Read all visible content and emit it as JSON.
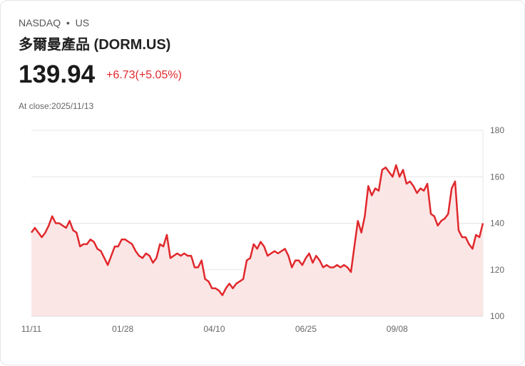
{
  "header": {
    "exchange": "NASDAQ",
    "separator": "•",
    "market": "US",
    "title": "多爾曼產品 (DORM.US)",
    "price": "139.94",
    "change": "+6.73(+5.05%)",
    "close_label": "At close:2025/11/13"
  },
  "colors": {
    "line": "#e0282c",
    "fill": "#fbe6e6",
    "grid": "#e5e5e5"
  },
  "chart_data": {
    "type": "area",
    "title": "",
    "xlabel": "",
    "ylabel": "",
    "ylim": [
      100,
      180
    ],
    "grid": true,
    "yticks": [
      "100",
      "120",
      "140",
      "160",
      "180"
    ],
    "xticks": [
      "11/11",
      "01/28",
      "04/10",
      "06/25",
      "09/08"
    ],
    "xtick_index": [
      0,
      0.2025,
      0.405,
      0.608,
      0.81
    ],
    "values": [
      136,
      138,
      136,
      134,
      136,
      139,
      143,
      140,
      140,
      139,
      138,
      141,
      137,
      136,
      130,
      131,
      131,
      133,
      132,
      129,
      128,
      125,
      122,
      126,
      130,
      130,
      133,
      133,
      132,
      131,
      128,
      126,
      125,
      127,
      126,
      123,
      125,
      131,
      130,
      135,
      125,
      126,
      127,
      126,
      127,
      126,
      126,
      121,
      121,
      124,
      116,
      115,
      112,
      112,
      111,
      109,
      112,
      114,
      112,
      114,
      115,
      116,
      124,
      125,
      131,
      129,
      132,
      130,
      126,
      127,
      128,
      127,
      128,
      129,
      126,
      121,
      124,
      124,
      122,
      125,
      127,
      123,
      126,
      124,
      121,
      122,
      121,
      121,
      122,
      121,
      122,
      121,
      119,
      130,
      141,
      136,
      143,
      156,
      152,
      155,
      154,
      163,
      164,
      162,
      160,
      165,
      160,
      163,
      157,
      158,
      156,
      153,
      155,
      154,
      157,
      144,
      143,
      139,
      141,
      142,
      144,
      155,
      158,
      137,
      134,
      134,
      131,
      129,
      135,
      134,
      140
    ]
  }
}
